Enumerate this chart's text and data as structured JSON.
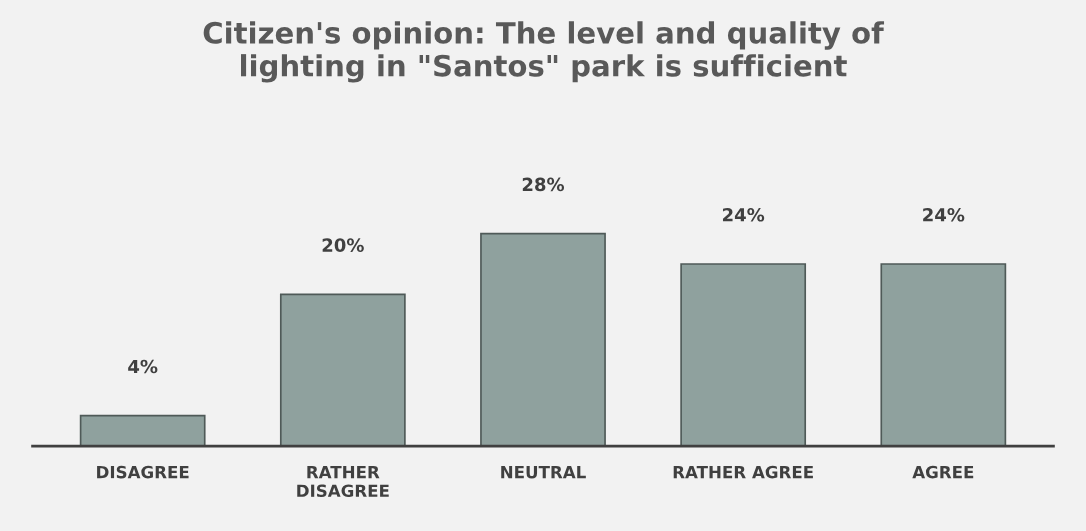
{
  "chart_data": {
    "type": "bar",
    "title": "Citizen's opinion: The level and quality of\nlighting in \"Santos\" park is sufficient",
    "categories": [
      "DISAGREE",
      "RATHER\nDISAGREE",
      "NEUTRAL",
      "RATHER AGREE",
      "AGREE"
    ],
    "values": [
      4,
      20,
      28,
      24,
      24
    ],
    "value_labels": [
      "4%",
      "20%",
      "28%",
      "24%",
      "24%"
    ],
    "color": "#8fa19e",
    "grid": false
  }
}
